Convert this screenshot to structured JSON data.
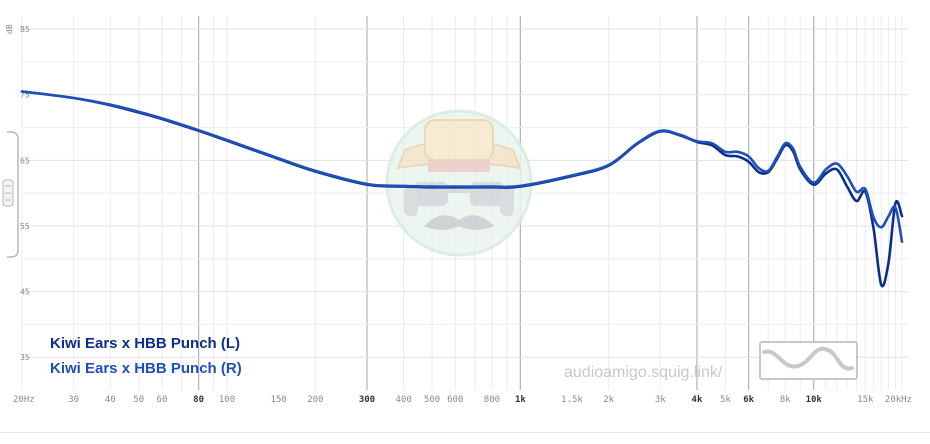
{
  "chart_data": {
    "type": "line",
    "ylabel": "dB",
    "x_scale": "log",
    "xlim": [
      20,
      20000
    ],
    "ylim": [
      30,
      87
    ],
    "y_ticks": [
      85,
      75,
      65,
      55,
      45,
      35
    ],
    "y_labels": [
      "85",
      "75",
      "65",
      "55",
      "45",
      "35"
    ],
    "x_ticks": [
      {
        "v": 20,
        "label": "20Hz",
        "bold": false
      },
      {
        "v": 30,
        "label": "30",
        "bold": false
      },
      {
        "v": 40,
        "label": "40",
        "bold": false
      },
      {
        "v": 50,
        "label": "50",
        "bold": false
      },
      {
        "v": 60,
        "label": "60",
        "bold": false
      },
      {
        "v": 80,
        "label": "80",
        "bold": true
      },
      {
        "v": 100,
        "label": "100",
        "bold": false
      },
      {
        "v": 150,
        "label": "150",
        "bold": false
      },
      {
        "v": 200,
        "label": "200",
        "bold": false
      },
      {
        "v": 300,
        "label": "300",
        "bold": true
      },
      {
        "v": 400,
        "label": "400",
        "bold": false
      },
      {
        "v": 500,
        "label": "500",
        "bold": false
      },
      {
        "v": 600,
        "label": "600",
        "bold": false
      },
      {
        "v": 800,
        "label": "800",
        "bold": false
      },
      {
        "v": 1000,
        "label": "1k",
        "bold": true
      },
      {
        "v": 1500,
        "label": "1.5k",
        "bold": false
      },
      {
        "v": 2000,
        "label": "2k",
        "bold": false
      },
      {
        "v": 3000,
        "label": "3k",
        "bold": false
      },
      {
        "v": 4000,
        "label": "4k",
        "bold": true
      },
      {
        "v": 5000,
        "label": "5k",
        "bold": false
      },
      {
        "v": 6000,
        "label": "6k",
        "bold": true
      },
      {
        "v": 8000,
        "label": "8k",
        "bold": false
      },
      {
        "v": 10000,
        "label": "10k",
        "bold": true
      },
      {
        "v": 15000,
        "label": "15k",
        "bold": false
      },
      {
        "v": 20000,
        "label": "20kHz",
        "bold": false
      }
    ],
    "major_gridlines": [
      80,
      300,
      1000,
      4000,
      6000,
      10000
    ],
    "series": [
      {
        "name": "Kiwi Ears x HBB Punch (L)",
        "color": "#0d2f8c",
        "x": [
          20,
          30,
          40,
          50,
          60,
          80,
          100,
          150,
          200,
          300,
          400,
          500,
          600,
          800,
          1000,
          1500,
          2000,
          2500,
          3000,
          3500,
          4000,
          4500,
          5000,
          5500,
          6000,
          6500,
          7000,
          7500,
          8000,
          8500,
          9000,
          10000,
          11000,
          12000,
          13000,
          14000,
          15000,
          16000,
          17000,
          18000,
          19000,
          20000
        ],
        "y": [
          75.5,
          74.5,
          73.4,
          72.3,
          71.3,
          69.5,
          68.0,
          65.2,
          63.3,
          61.3,
          61.0,
          60.9,
          60.9,
          60.9,
          61.0,
          62.6,
          64.2,
          67.5,
          69.4,
          68.8,
          67.8,
          67.3,
          65.8,
          65.6,
          64.8,
          63.2,
          63.2,
          65.2,
          67.3,
          66.4,
          63.6,
          61.3,
          63.0,
          63.6,
          61.0,
          58.8,
          60.2,
          54.6,
          46.0,
          49.5,
          58.5,
          56.5
        ]
      },
      {
        "name": "Kiwi Ears x HBB Punch (R)",
        "color": "#1f4fb8",
        "x": [
          20,
          30,
          40,
          50,
          60,
          80,
          100,
          150,
          200,
          300,
          400,
          500,
          600,
          800,
          1000,
          1500,
          2000,
          2500,
          3000,
          3500,
          4000,
          4500,
          5000,
          5500,
          6000,
          6500,
          7000,
          7500,
          8000,
          8500,
          9000,
          10000,
          11000,
          12000,
          13000,
          14000,
          15000,
          16000,
          17000,
          18000,
          19000,
          20000
        ],
        "y": [
          75.5,
          74.5,
          73.5,
          72.4,
          71.4,
          69.6,
          68.1,
          65.3,
          63.4,
          61.4,
          61.1,
          61.0,
          61.0,
          61.0,
          61.1,
          62.7,
          64.3,
          67.6,
          69.5,
          68.9,
          67.9,
          67.6,
          66.3,
          66.3,
          65.6,
          63.8,
          63.4,
          65.5,
          67.6,
          66.8,
          64.0,
          61.6,
          63.6,
          64.5,
          62.6,
          60.2,
          60.6,
          56.3,
          54.8,
          56.5,
          57.8,
          52.6
        ]
      }
    ]
  },
  "watermark": {
    "text": "audioamigo.squig.link/"
  }
}
